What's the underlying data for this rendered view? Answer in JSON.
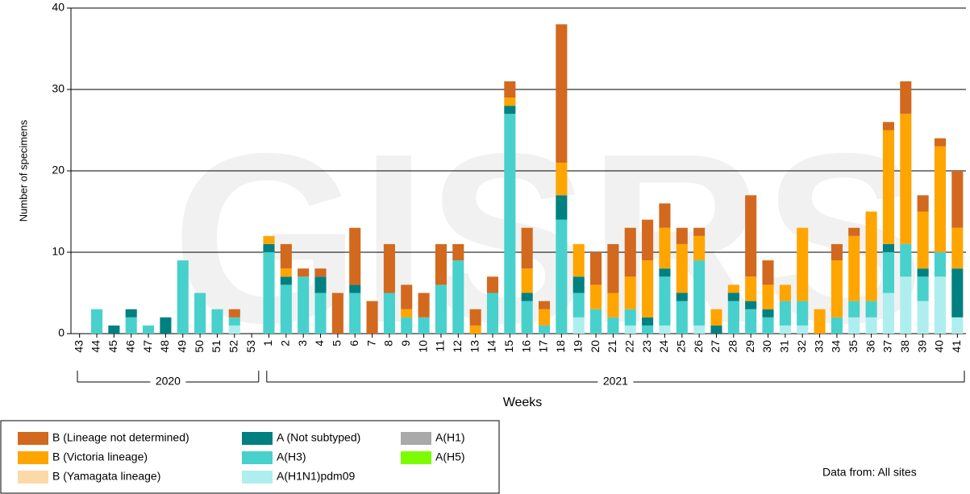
{
  "chart_data": {
    "type": "stacked-bar",
    "watermark": "GISRS",
    "x_label": "Weeks",
    "y_label": "Number of specimens",
    "footnote": "Data from: All sites",
    "categories": [
      "43",
      "44",
      "45",
      "46",
      "47",
      "48",
      "49",
      "50",
      "51",
      "52",
      "53",
      "1",
      "2",
      "3",
      "4",
      "5",
      "6",
      "7",
      "8",
      "9",
      "10",
      "11",
      "12",
      "13",
      "14",
      "15",
      "16",
      "17",
      "18",
      "19",
      "20",
      "21",
      "22",
      "23",
      "24",
      "25",
      "26",
      "27",
      "28",
      "29",
      "30",
      "31",
      "32",
      "33",
      "34",
      "35",
      "36",
      "37",
      "38",
      "39",
      "40",
      "41"
    ],
    "x_groups": [
      {
        "label": "2020",
        "from": "43",
        "to": "53"
      },
      {
        "label": "2021",
        "from": "1",
        "to": "41"
      }
    ],
    "ylim": [
      0,
      40
    ],
    "yticks": [
      0,
      10,
      20,
      30,
      40
    ],
    "grid": true,
    "series": [
      {
        "name": "B (Lineage not determined)",
        "color": "#d2691e",
        "values": [
          0,
          0,
          0,
          0,
          0,
          0,
          0,
          0,
          0,
          1,
          0,
          0,
          3,
          1,
          1,
          5,
          7,
          4,
          6,
          3,
          3,
          5,
          2,
          2,
          2,
          2,
          5,
          1,
          17,
          0,
          4,
          6,
          6,
          5,
          3,
          2,
          1,
          0,
          0,
          10,
          3,
          0,
          0,
          0,
          2,
          1,
          0,
          1,
          4,
          2,
          1,
          7
        ]
      },
      {
        "name": "B (Victoria lineage)",
        "color": "#ffa500",
        "values": [
          0,
          0,
          0,
          0,
          0,
          0,
          0,
          0,
          0,
          0,
          0,
          1,
          1,
          0,
          0,
          0,
          0,
          0,
          0,
          1,
          0,
          0,
          0,
          1,
          0,
          1,
          3,
          2,
          4,
          4,
          3,
          3,
          4,
          7,
          5,
          6,
          3,
          2,
          1,
          3,
          3,
          2,
          9,
          3,
          7,
          8,
          11,
          14,
          16,
          7,
          13,
          5
        ]
      },
      {
        "name": "B (Yamagata lineage)",
        "color": "#fdd9a8",
        "values": [
          0,
          0,
          0,
          0,
          0,
          0,
          0,
          0,
          0,
          0,
          0,
          0,
          0,
          0,
          0,
          0,
          0,
          0,
          0,
          0,
          0,
          0,
          0,
          0,
          0,
          0,
          0,
          0,
          0,
          0,
          0,
          0,
          0,
          0,
          0,
          0,
          0,
          0,
          0,
          0,
          0,
          0,
          0,
          0,
          0,
          0,
          0,
          0,
          0,
          0,
          0,
          0
        ]
      },
      {
        "name": "A (Not subtyped)",
        "color": "#008080",
        "values": [
          0,
          0,
          1,
          1,
          0,
          2,
          0,
          0,
          0,
          0,
          0,
          1,
          1,
          0,
          2,
          0,
          1,
          0,
          0,
          0,
          0,
          0,
          0,
          0,
          0,
          1,
          1,
          0,
          3,
          2,
          0,
          0,
          0,
          1,
          1,
          1,
          0,
          1,
          1,
          1,
          1,
          0,
          0,
          0,
          0,
          0,
          0,
          1,
          0,
          1,
          0,
          6
        ]
      },
      {
        "name": "A(H3)",
        "color": "#48d1cc",
        "values": [
          0,
          3,
          0,
          2,
          1,
          0,
          9,
          5,
          3,
          1,
          0,
          10,
          6,
          7,
          5,
          0,
          5,
          0,
          5,
          2,
          2,
          6,
          9,
          0,
          5,
          27,
          4,
          1,
          14,
          3,
          3,
          2,
          2,
          1,
          6,
          4,
          8,
          0,
          4,
          3,
          2,
          3,
          3,
          0,
          2,
          2,
          2,
          5,
          4,
          3,
          3,
          0
        ]
      },
      {
        "name": "A(H1N1)pdm09",
        "color": "#afeeee",
        "values": [
          0,
          0,
          0,
          0,
          0,
          0,
          0,
          0,
          0,
          1,
          0,
          0,
          0,
          0,
          0,
          0,
          0,
          0,
          0,
          0,
          0,
          0,
          0,
          0,
          0,
          0,
          0,
          0,
          0,
          2,
          0,
          0,
          1,
          0,
          1,
          0,
          1,
          0,
          0,
          0,
          0,
          1,
          1,
          0,
          0,
          2,
          2,
          5,
          7,
          4,
          7,
          2
        ]
      },
      {
        "name": "A(H1)",
        "color": "#a9a9a9",
        "values": [
          0,
          0,
          0,
          0,
          0,
          0,
          0,
          0,
          0,
          0,
          0,
          0,
          0,
          0,
          0,
          0,
          0,
          0,
          0,
          0,
          0,
          0,
          0,
          0,
          0,
          0,
          0,
          0,
          0,
          0,
          0,
          0,
          0,
          0,
          0,
          0,
          0,
          0,
          0,
          0,
          0,
          0,
          0,
          0,
          0,
          0,
          0,
          0,
          0,
          0,
          0,
          0
        ]
      },
      {
        "name": "A(H5)",
        "color": "#7cfc00",
        "values": [
          0,
          0,
          0,
          0,
          0,
          0,
          0,
          0,
          0,
          0,
          0,
          0,
          0,
          0,
          0,
          0,
          0,
          0,
          0,
          0,
          0,
          0,
          0,
          0,
          0,
          0,
          0,
          0,
          0,
          0,
          0,
          0,
          0,
          0,
          0,
          0,
          0,
          0,
          0,
          0,
          0,
          0,
          0,
          0,
          0,
          0,
          0,
          0,
          0,
          0,
          0,
          0
        ]
      }
    ]
  }
}
